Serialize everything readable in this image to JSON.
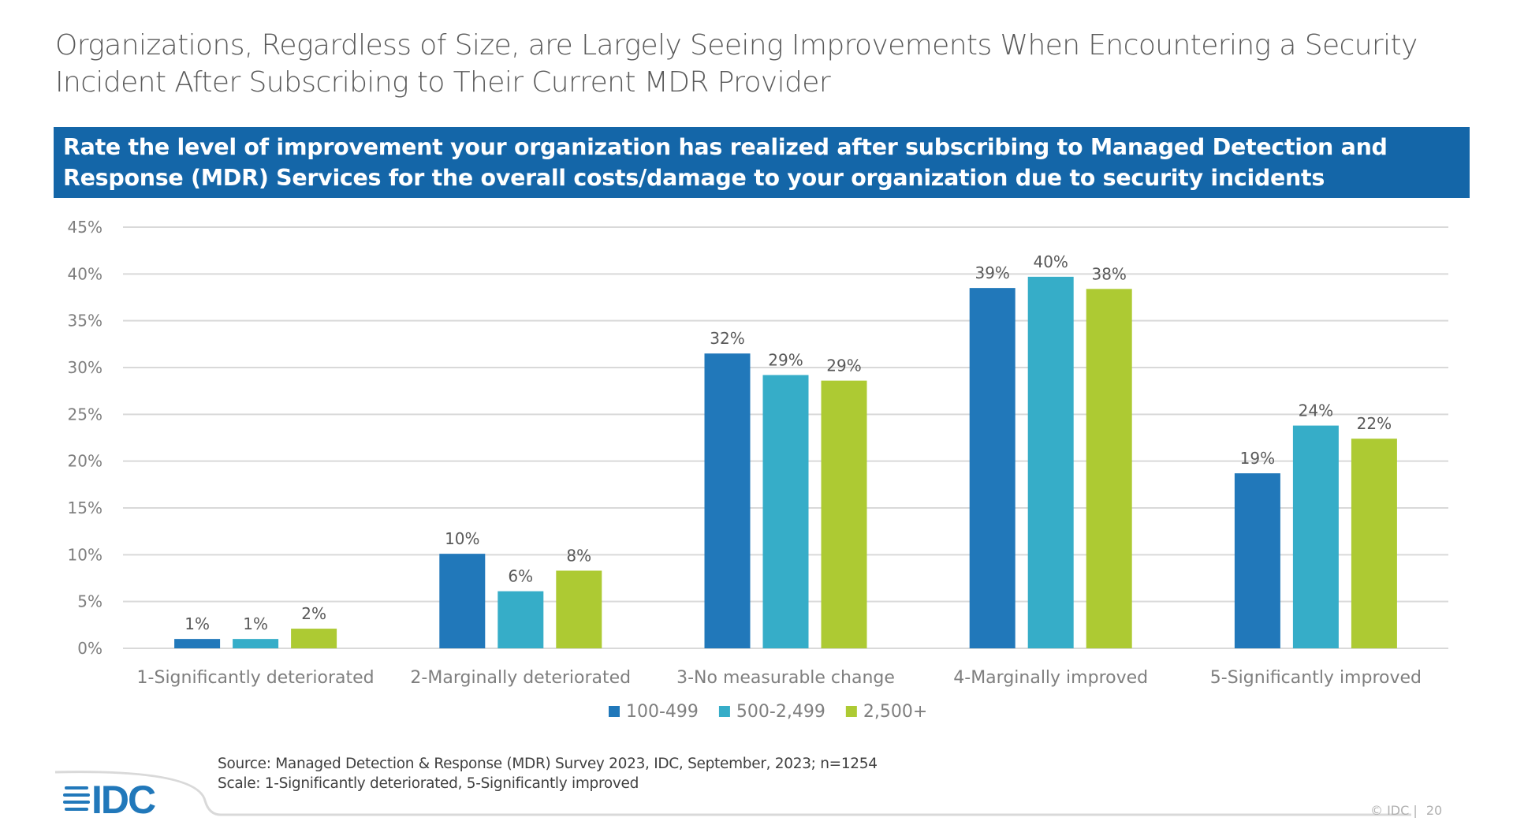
{
  "title": "Organizations, Regardless of Size, are Largely Seeing Improvements When Encountering a Security Incident After Subscribing to Their Current MDR Provider",
  "question": "Rate the level of improvement your organization has realized after subscribing to Managed Detection and Response (MDR) Services for the overall costs/damage to your organization due to security incidents",
  "chart_data": {
    "type": "bar",
    "categories": [
      "1-Significantly deteriorated",
      "2-Marginally deteriorated",
      "3-No measurable change",
      "4-Marginally improved",
      "5-Significantly improved"
    ],
    "series": [
      {
        "name": "100-499",
        "color": "#2178ba",
        "values": [
          1.0,
          10.1,
          31.5,
          38.5,
          18.7
        ],
        "labels": [
          "1%",
          "10%",
          "32%",
          "39%",
          "19%"
        ]
      },
      {
        "name": "500-2,499",
        "color": "#36adc8",
        "values": [
          1.0,
          6.1,
          29.2,
          39.7,
          23.8
        ],
        "labels": [
          "1%",
          "6%",
          "29%",
          "40%",
          "24%"
        ]
      },
      {
        "name": "2,500+",
        "color": "#adca33",
        "values": [
          2.1,
          8.3,
          28.6,
          38.4,
          22.4
        ],
        "labels": [
          "2%",
          "8%",
          "29%",
          "38%",
          "22%"
        ]
      }
    ],
    "ylim": [
      0,
      45
    ],
    "yticks": [
      "0%",
      "5%",
      "10%",
      "15%",
      "20%",
      "25%",
      "30%",
      "35%",
      "40%",
      "45%"
    ],
    "grid": true,
    "legend": "bottom"
  },
  "source": {
    "line1": "Source: Managed Detection & Response (MDR) Survey 2023, IDC, September, 2023; n=1254",
    "line2": "Scale: 1-Significantly deteriorated, 5-Significantly improved"
  },
  "footer": {
    "logo": "IDC",
    "copyright": "© IDC |",
    "page": "20"
  },
  "colors": {
    "banner": "#1466a8"
  }
}
